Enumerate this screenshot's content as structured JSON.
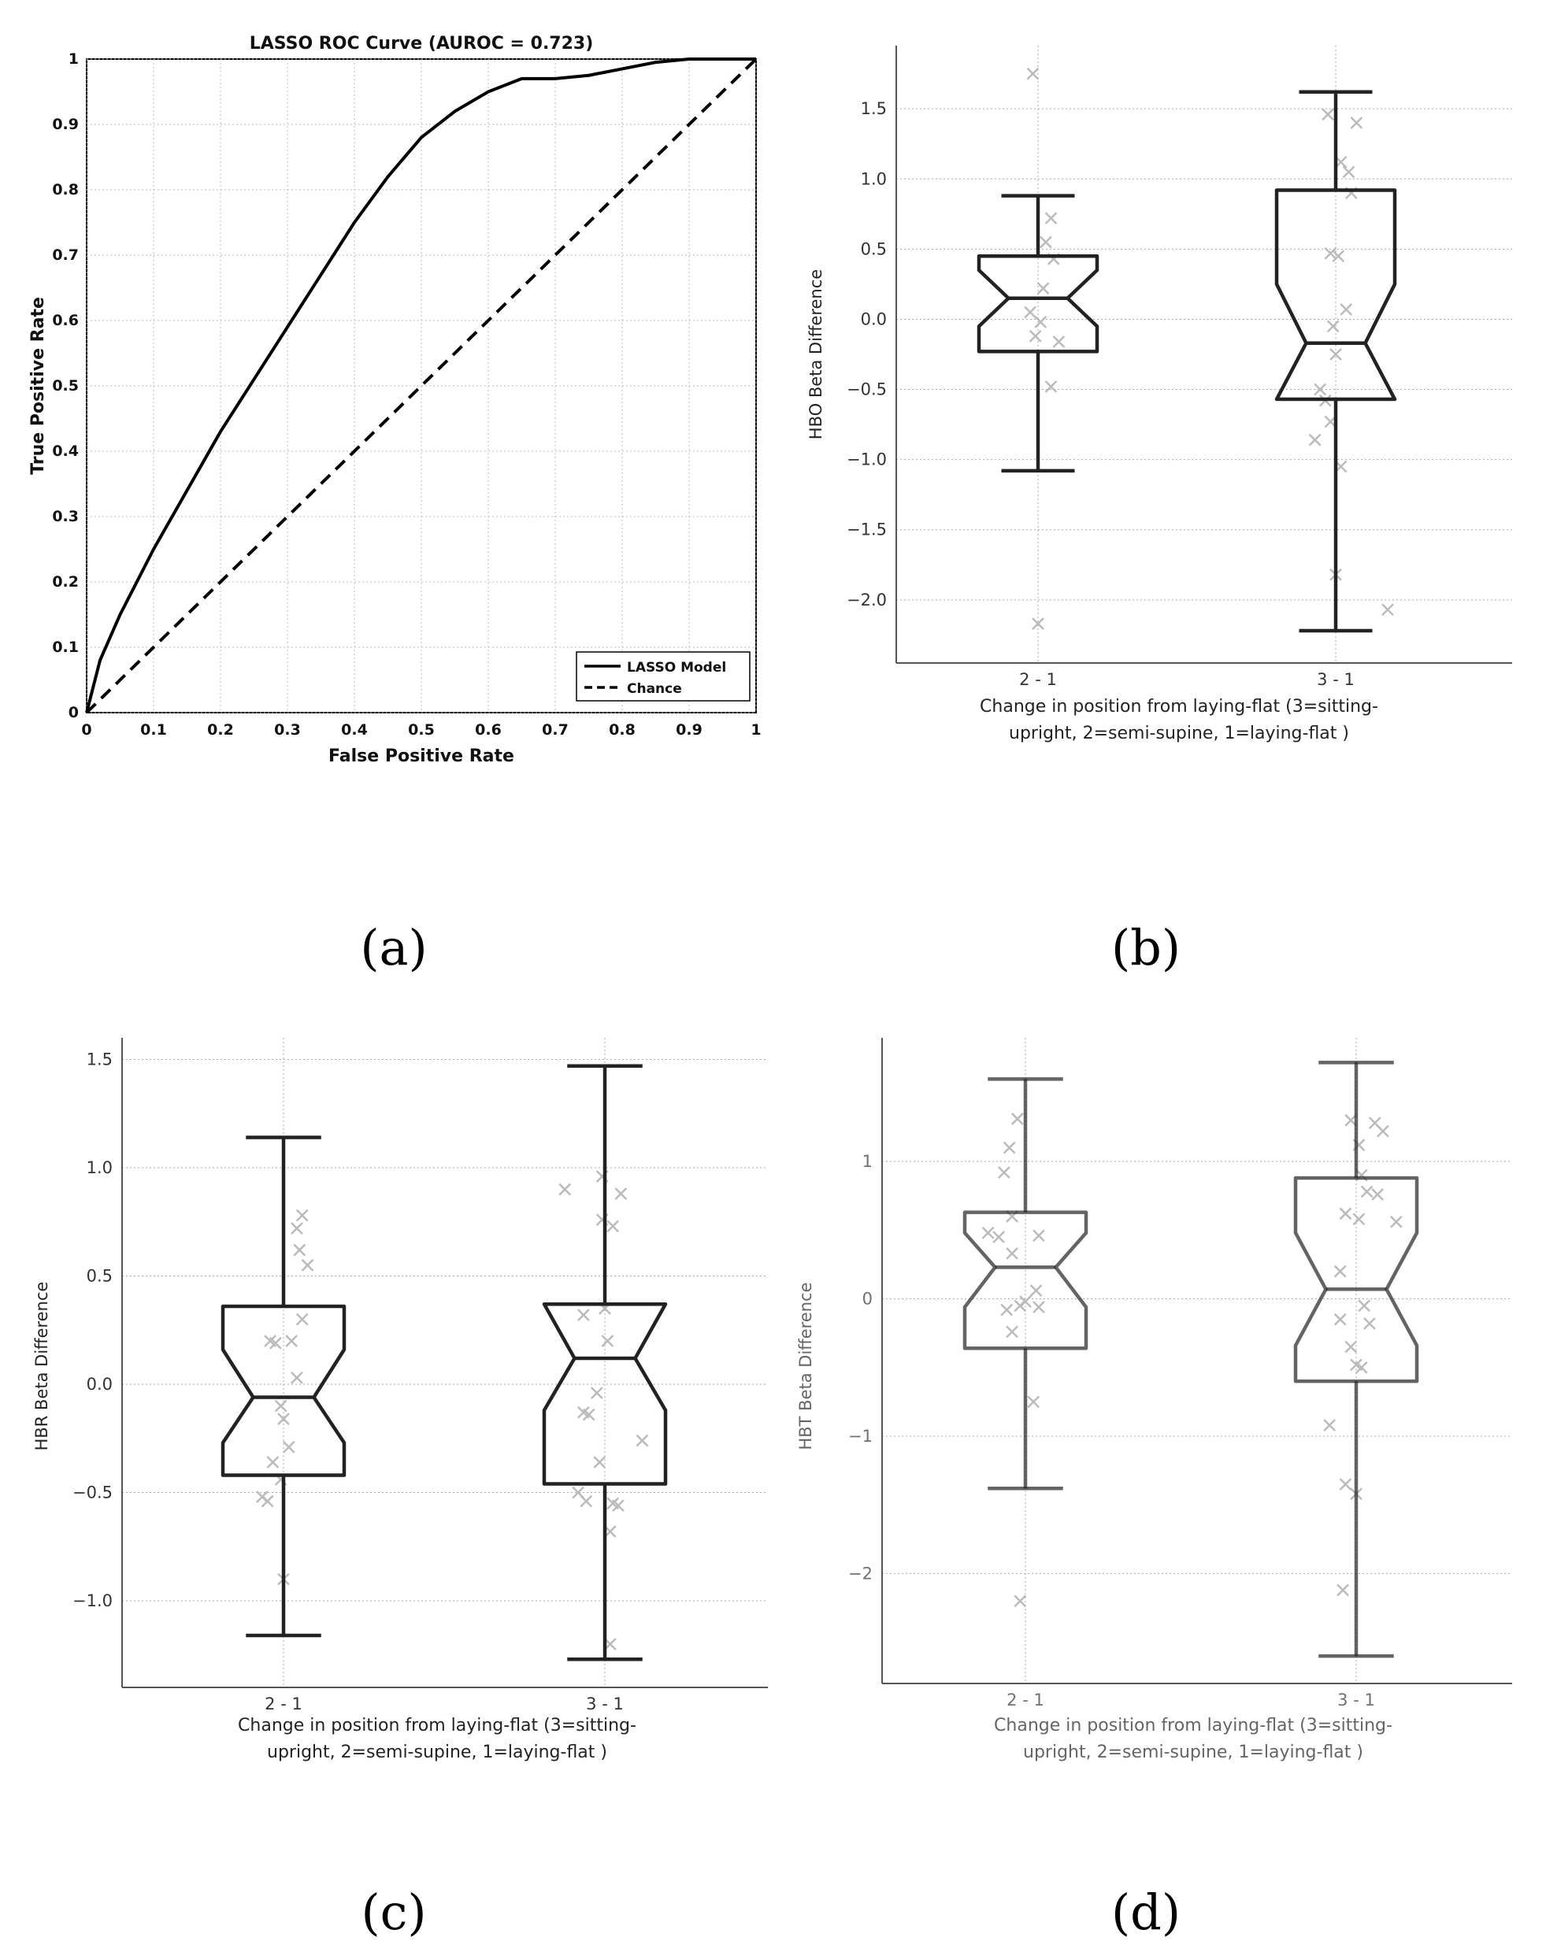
{
  "chart_data": [
    {
      "type": "line",
      "panel": "(a)",
      "title": "LASSO ROC Curve (AUROC = 0.723)",
      "xlabel": "False Positive Rate",
      "ylabel": "True Positive Rate",
      "xlim": [
        0,
        1
      ],
      "ylim": [
        0,
        1
      ],
      "xticks": [
        "0",
        "0.1",
        "0.2",
        "0.3",
        "0.4",
        "0.5",
        "0.6",
        "0.7",
        "0.8",
        "0.9",
        "1"
      ],
      "yticks": [
        "0",
        "0.1",
        "0.2",
        "0.3",
        "0.4",
        "0.5",
        "0.6",
        "0.7",
        "0.8",
        "0.9",
        "1"
      ],
      "grid": true,
      "legend_position": "bottom-right",
      "series": [
        {
          "name": "LASSO Model",
          "style": "solid",
          "x": [
            0,
            0.02,
            0.05,
            0.1,
            0.15,
            0.2,
            0.25,
            0.3,
            0.35,
            0.4,
            0.45,
            0.5,
            0.55,
            0.6,
            0.65,
            0.7,
            0.75,
            0.8,
            0.85,
            0.9,
            0.95,
            1.0
          ],
          "y": [
            0,
            0.08,
            0.15,
            0.25,
            0.34,
            0.43,
            0.51,
            0.59,
            0.67,
            0.75,
            0.82,
            0.88,
            0.92,
            0.95,
            0.97,
            0.97,
            0.975,
            0.985,
            0.995,
            1.0,
            1.0,
            1.0
          ]
        },
        {
          "name": "Chance",
          "style": "dashed",
          "x": [
            0,
            1
          ],
          "y": [
            0,
            1
          ]
        }
      ]
    },
    {
      "type": "box",
      "panel": "(b)",
      "ylabel": "HBO Beta Difference",
      "xlabel_lines": [
        "Change in position from laying-flat (3=sitting-",
        "upright, 2=semi-supine, 1=laying-flat )"
      ],
      "categories": [
        "2 - 1",
        "3 - 1"
      ],
      "ylim": [
        -2.45,
        1.95
      ],
      "yticks": [
        "1.5",
        "1.0",
        "0.5",
        "0.0",
        "−0.5",
        "−1.0",
        "−1.5",
        "−2.0"
      ],
      "ytick_values": [
        1.5,
        1.0,
        0.5,
        0.0,
        -0.5,
        -1.0,
        -1.5,
        -2.0
      ],
      "boxes": [
        {
          "whisker_low": -1.08,
          "q1": -0.23,
          "median": 0.15,
          "q3": 0.45,
          "whisker_high": 0.88,
          "notch_low": -0.05,
          "notch_high": 0.35
        },
        {
          "whisker_low": -2.22,
          "q1": -0.57,
          "median": -0.17,
          "q3": 0.92,
          "whisker_high": 1.62,
          "notch_low": -0.57,
          "notch_high": 0.25
        }
      ],
      "points": [
        [
          {
            "dx": -0.02,
            "y": 1.75
          },
          {
            "dx": 0.05,
            "y": 0.72
          },
          {
            "dx": 0.03,
            "y": 0.55
          },
          {
            "dx": 0.06,
            "y": 0.43
          },
          {
            "dx": 0.02,
            "y": 0.22
          },
          {
            "dx": -0.03,
            "y": 0.05
          },
          {
            "dx": 0.01,
            "y": -0.02
          },
          {
            "dx": -0.01,
            "y": -0.12
          },
          {
            "dx": 0.08,
            "y": -0.16
          },
          {
            "dx": 0.05,
            "y": -0.48
          },
          {
            "dx": 0.0,
            "y": -2.17
          }
        ],
        [
          {
            "dx": -0.03,
            "y": 1.46
          },
          {
            "dx": 0.08,
            "y": 1.4
          },
          {
            "dx": 0.02,
            "y": 1.12
          },
          {
            "dx": 0.05,
            "y": 1.05
          },
          {
            "dx": 0.06,
            "y": 0.9
          },
          {
            "dx": -0.02,
            "y": 0.47
          },
          {
            "dx": 0.01,
            "y": 0.45
          },
          {
            "dx": 0.04,
            "y": 0.07
          },
          {
            "dx": -0.01,
            "y": -0.05
          },
          {
            "dx": 0.0,
            "y": -0.25
          },
          {
            "dx": -0.06,
            "y": -0.5
          },
          {
            "dx": -0.04,
            "y": -0.58
          },
          {
            "dx": -0.02,
            "y": -0.73
          },
          {
            "dx": -0.08,
            "y": -0.86
          },
          {
            "dx": 0.02,
            "y": -1.05
          },
          {
            "dx": 0.0,
            "y": -1.82
          },
          {
            "dx": 0.2,
            "y": -2.07
          }
        ]
      ]
    },
    {
      "type": "box",
      "panel": "(c)",
      "ylabel": "HBR Beta Difference",
      "xlabel_lines": [
        "Change in position from laying-flat (3=sitting-",
        "upright, 2=semi-supine, 1=laying-flat )"
      ],
      "categories": [
        "2 - 1",
        "3 - 1"
      ],
      "ylim": [
        -1.4,
        1.6
      ],
      "yticks": [
        "1.5",
        "1.0",
        "0.5",
        "0.0",
        "−0.5",
        "−1.0"
      ],
      "ytick_values": [
        1.5,
        1.0,
        0.5,
        0.0,
        -0.5,
        -1.0
      ],
      "boxes": [
        {
          "whisker_low": -1.16,
          "q1": -0.42,
          "median": -0.06,
          "q3": 0.36,
          "whisker_high": 1.14,
          "notch_low": -0.27,
          "notch_high": 0.16
        },
        {
          "whisker_low": -1.27,
          "q1": -0.46,
          "median": 0.12,
          "q3": 0.37,
          "whisker_high": 1.47,
          "notch_low": -0.12,
          "notch_high": 0.37
        }
      ],
      "points": [
        [
          {
            "dx": 0.07,
            "y": 0.78
          },
          {
            "dx": 0.05,
            "y": 0.72
          },
          {
            "dx": 0.06,
            "y": 0.62
          },
          {
            "dx": 0.09,
            "y": 0.55
          },
          {
            "dx": 0.07,
            "y": 0.3
          },
          {
            "dx": -0.05,
            "y": 0.2
          },
          {
            "dx": -0.03,
            "y": 0.19
          },
          {
            "dx": 0.03,
            "y": 0.2
          },
          {
            "dx": 0.05,
            "y": 0.03
          },
          {
            "dx": -0.01,
            "y": -0.1
          },
          {
            "dx": 0.0,
            "y": -0.16
          },
          {
            "dx": 0.02,
            "y": -0.29
          },
          {
            "dx": -0.04,
            "y": -0.36
          },
          {
            "dx": -0.01,
            "y": -0.44
          },
          {
            "dx": -0.08,
            "y": -0.52
          },
          {
            "dx": -0.06,
            "y": -0.54
          },
          {
            "dx": 0.0,
            "y": -0.9
          }
        ],
        [
          {
            "dx": -0.01,
            "y": 0.96
          },
          {
            "dx": 0.06,
            "y": 0.88
          },
          {
            "dx": -0.15,
            "y": 0.9
          },
          {
            "dx": -0.01,
            "y": 0.76
          },
          {
            "dx": 0.03,
            "y": 0.73
          },
          {
            "dx": 0.0,
            "y": 0.35
          },
          {
            "dx": -0.08,
            "y": 0.32
          },
          {
            "dx": 0.01,
            "y": 0.2
          },
          {
            "dx": -0.03,
            "y": -0.04
          },
          {
            "dx": -0.08,
            "y": -0.13
          },
          {
            "dx": -0.06,
            "y": -0.14
          },
          {
            "dx": 0.14,
            "y": -0.26
          },
          {
            "dx": -0.02,
            "y": -0.36
          },
          {
            "dx": -0.1,
            "y": -0.5
          },
          {
            "dx": -0.07,
            "y": -0.54
          },
          {
            "dx": 0.03,
            "y": -0.55
          },
          {
            "dx": 0.05,
            "y": -0.56
          },
          {
            "dx": 0.02,
            "y": -0.68
          },
          {
            "dx": 0.02,
            "y": -1.2
          }
        ]
      ]
    },
    {
      "type": "box",
      "panel": "(d)",
      "ylabel": "HBT Beta Difference",
      "xlabel_lines": [
        "Change in position from laying-flat (3=sitting-",
        "upright, 2=semi-supine, 1=laying-flat )"
      ],
      "categories": [
        "2 - 1",
        "3 - 1"
      ],
      "ylim": [
        -2.8,
        1.9
      ],
      "yticks": [
        "1",
        "0",
        "−1",
        "−2"
      ],
      "ytick_values": [
        1,
        0,
        -1,
        -2
      ],
      "boxes": [
        {
          "whisker_low": -1.38,
          "q1": -0.36,
          "median": 0.23,
          "q3": 0.63,
          "whisker_high": 1.6,
          "notch_low": -0.06,
          "notch_high": 0.48
        },
        {
          "whisker_low": -2.6,
          "q1": -0.6,
          "median": 0.07,
          "q3": 0.88,
          "whisker_high": 1.72,
          "notch_low": -0.34,
          "notch_high": 0.48
        }
      ],
      "points": [
        [
          {
            "dx": -0.03,
            "y": 1.31
          },
          {
            "dx": -0.06,
            "y": 1.1
          },
          {
            "dx": -0.08,
            "y": 0.92
          },
          {
            "dx": -0.05,
            "y": 0.6
          },
          {
            "dx": -0.14,
            "y": 0.48
          },
          {
            "dx": -0.1,
            "y": 0.45
          },
          {
            "dx": 0.05,
            "y": 0.46
          },
          {
            "dx": -0.05,
            "y": 0.33
          },
          {
            "dx": 0.04,
            "y": 0.06
          },
          {
            "dx": 0.0,
            "y": -0.02
          },
          {
            "dx": -0.02,
            "y": -0.05
          },
          {
            "dx": 0.05,
            "y": -0.06
          },
          {
            "dx": -0.07,
            "y": -0.08
          },
          {
            "dx": -0.05,
            "y": -0.24
          },
          {
            "dx": 0.03,
            "y": -0.75
          },
          {
            "dx": -0.02,
            "y": -2.2
          }
        ],
        [
          {
            "dx": -0.02,
            "y": 1.3
          },
          {
            "dx": 0.07,
            "y": 1.28
          },
          {
            "dx": 0.1,
            "y": 1.22
          },
          {
            "dx": 0.01,
            "y": 1.12
          },
          {
            "dx": 0.02,
            "y": 0.9
          },
          {
            "dx": 0.04,
            "y": 0.78
          },
          {
            "dx": 0.08,
            "y": 0.76
          },
          {
            "dx": -0.04,
            "y": 0.62
          },
          {
            "dx": 0.01,
            "y": 0.58
          },
          {
            "dx": 0.15,
            "y": 0.56
          },
          {
            "dx": -0.06,
            "y": 0.2
          },
          {
            "dx": 0.03,
            "y": -0.05
          },
          {
            "dx": -0.06,
            "y": -0.15
          },
          {
            "dx": 0.05,
            "y": -0.18
          },
          {
            "dx": -0.02,
            "y": -0.35
          },
          {
            "dx": 0.0,
            "y": -0.48
          },
          {
            "dx": 0.02,
            "y": -0.5
          },
          {
            "dx": -0.1,
            "y": -0.92
          },
          {
            "dx": -0.04,
            "y": -1.35
          },
          {
            "dx": 0.0,
            "y": -1.42
          },
          {
            "dx": -0.05,
            "y": -2.12
          }
        ]
      ]
    }
  ],
  "panel_labels": {
    "a": "(a)",
    "b": "(b)",
    "c": "(c)",
    "d": "(d)"
  }
}
